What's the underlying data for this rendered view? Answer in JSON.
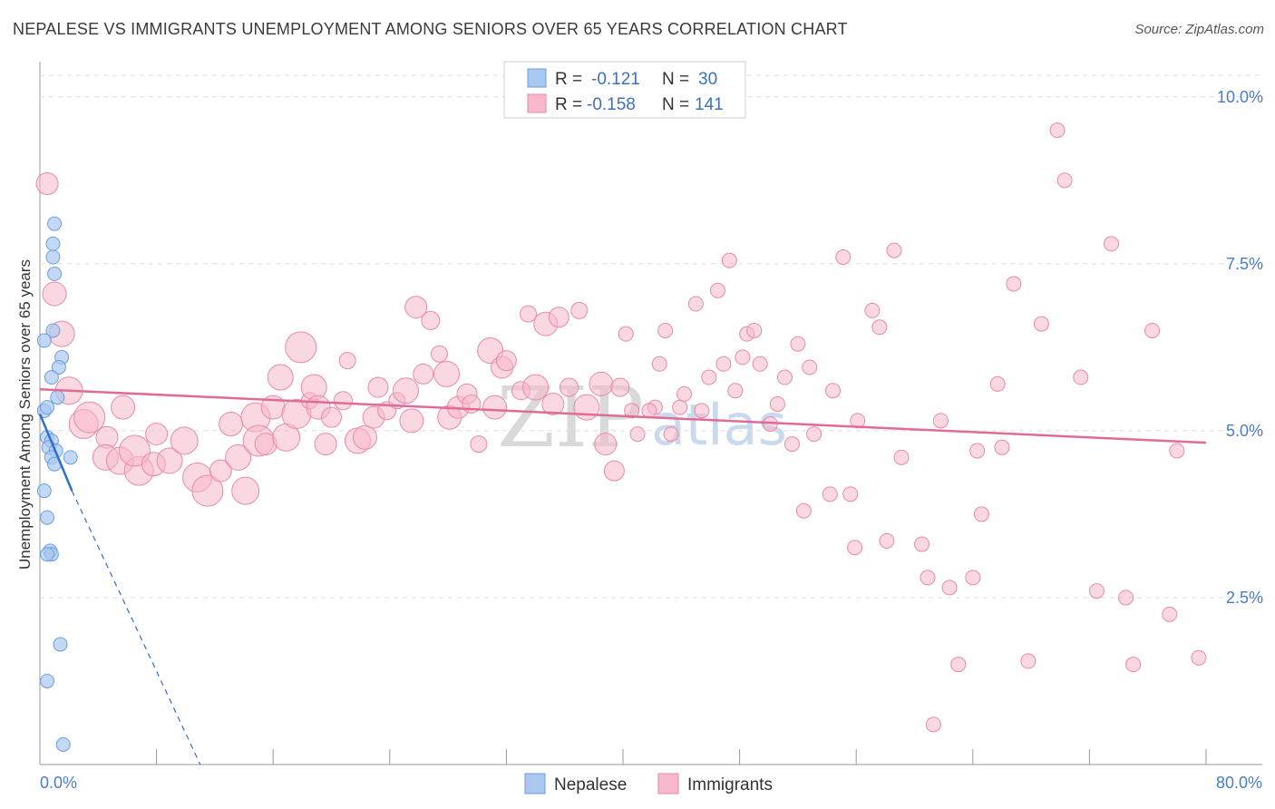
{
  "title": "NEPALESE VS IMMIGRANTS UNEMPLOYMENT AMONG SENIORS OVER 65 YEARS CORRELATION CHART",
  "source": "Source: ZipAtlas.com",
  "watermark": {
    "zip": "ZIP",
    "atlas": "atlas"
  },
  "colors": {
    "nepalese_fill": "#a9c8f0",
    "nepalese_stroke": "#6b9ee0",
    "nepalese_line": "#2f6fcc",
    "immigrants_fill": "#f6b8ca",
    "immigrants_stroke": "#e88aa6",
    "immigrants_line": "#e06b97",
    "grid": "#dddddd",
    "tick_text": "#4a7cc7"
  },
  "legend": {
    "rows": [
      {
        "r_label": "R =",
        "r_value": "-0.121",
        "n_label": "N =",
        "n_value": "30"
      },
      {
        "r_label": "R =",
        "r_value": "-0.158",
        "n_label": "N =",
        "n_value": "141"
      }
    ]
  },
  "chart_data": {
    "type": "scatter",
    "xlabel": "",
    "ylabel": "Unemployment Among Seniors over 65 years",
    "xlim": [
      0,
      80
    ],
    "ylim": [
      0,
      10.5
    ],
    "x_tick_labels": [
      "0.0%",
      "80.0%"
    ],
    "y_ticks": [
      2.5,
      5.0,
      7.5,
      10.0
    ],
    "y_tick_labels": [
      "2.5%",
      "5.0%",
      "7.5%",
      "10.0%"
    ],
    "legend_entries": [
      "Nepalese",
      "Immigrants"
    ],
    "series": [
      {
        "name": "Nepalese",
        "R": -0.121,
        "N": 30,
        "trend": {
          "x": [
            0.0,
            2.2
          ],
          "y": [
            5.25,
            4.1
          ],
          "dashed_extension_to": [
            11.0,
            0.0
          ]
        },
        "points": [
          [
            1.0,
            8.1
          ],
          [
            0.9,
            7.8
          ],
          [
            0.9,
            7.6
          ],
          [
            1.0,
            7.35
          ],
          [
            0.9,
            6.5
          ],
          [
            0.3,
            6.35
          ],
          [
            1.5,
            6.1
          ],
          [
            1.3,
            5.95
          ],
          [
            0.8,
            5.8
          ],
          [
            1.2,
            5.5
          ],
          [
            0.3,
            5.3
          ],
          [
            0.5,
            5.35
          ],
          [
            0.5,
            4.9
          ],
          [
            0.8,
            4.85
          ],
          [
            0.6,
            4.75
          ],
          [
            1.1,
            4.7
          ],
          [
            0.8,
            4.6
          ],
          [
            2.1,
            4.6
          ],
          [
            1.0,
            4.5
          ],
          [
            0.3,
            4.1
          ],
          [
            0.5,
            3.7
          ],
          [
            0.7,
            3.2
          ],
          [
            0.8,
            3.15
          ],
          [
            0.5,
            3.15
          ],
          [
            1.4,
            1.8
          ],
          [
            0.5,
            1.25
          ],
          [
            1.6,
            0.3
          ]
        ]
      },
      {
        "name": "Immigrants",
        "R": -0.158,
        "N": 141,
        "trend": {
          "x": [
            0.0,
            80.0
          ],
          "y": [
            5.62,
            4.82
          ]
        },
        "points": [
          [
            0.5,
            8.7
          ],
          [
            1.0,
            7.05
          ],
          [
            1.5,
            6.45
          ],
          [
            2.0,
            5.6
          ],
          [
            3.0,
            5.1
          ],
          [
            3.4,
            5.2
          ],
          [
            4.6,
            4.9
          ],
          [
            5.7,
            5.35
          ],
          [
            4.5,
            4.6
          ],
          [
            5.5,
            4.55
          ],
          [
            6.8,
            4.4
          ],
          [
            6.5,
            4.7
          ],
          [
            8.0,
            4.95
          ],
          [
            7.8,
            4.5
          ],
          [
            8.9,
            4.55
          ],
          [
            9.9,
            4.85
          ],
          [
            10.8,
            4.3
          ],
          [
            11.5,
            4.1
          ],
          [
            12.4,
            4.4
          ],
          [
            13.1,
            5.1
          ],
          [
            13.6,
            4.6
          ],
          [
            14.1,
            4.1
          ],
          [
            14.8,
            5.2
          ],
          [
            15.0,
            4.85
          ],
          [
            15.5,
            4.8
          ],
          [
            16.0,
            5.35
          ],
          [
            16.5,
            5.8
          ],
          [
            16.9,
            4.9
          ],
          [
            17.6,
            5.25
          ],
          [
            17.9,
            6.25
          ],
          [
            18.5,
            5.45
          ],
          [
            18.8,
            5.65
          ],
          [
            19.1,
            5.35
          ],
          [
            19.6,
            4.8
          ],
          [
            20.0,
            5.2
          ],
          [
            20.8,
            5.45
          ],
          [
            21.1,
            6.05
          ],
          [
            21.8,
            4.85
          ],
          [
            22.3,
            4.9
          ],
          [
            22.9,
            5.2
          ],
          [
            23.2,
            5.65
          ],
          [
            23.8,
            5.3
          ],
          [
            24.5,
            5.45
          ],
          [
            25.1,
            5.6
          ],
          [
            25.5,
            5.15
          ],
          [
            25.8,
            6.85
          ],
          [
            26.3,
            5.85
          ],
          [
            26.8,
            6.65
          ],
          [
            27.4,
            6.15
          ],
          [
            27.9,
            5.85
          ],
          [
            28.1,
            5.2
          ],
          [
            28.7,
            5.35
          ],
          [
            29.3,
            5.55
          ],
          [
            29.6,
            5.4
          ],
          [
            30.1,
            4.8
          ],
          [
            30.9,
            6.2
          ],
          [
            31.2,
            5.35
          ],
          [
            31.7,
            5.95
          ],
          [
            32.0,
            6.05
          ],
          [
            33.0,
            5.6
          ],
          [
            33.5,
            6.75
          ],
          [
            34.0,
            5.65
          ],
          [
            34.7,
            6.6
          ],
          [
            35.2,
            5.4
          ],
          [
            35.6,
            6.7
          ],
          [
            36.3,
            5.65
          ],
          [
            37.0,
            6.8
          ],
          [
            37.5,
            5.35
          ],
          [
            38.5,
            5.7
          ],
          [
            38.8,
            4.8
          ],
          [
            39.4,
            4.4
          ],
          [
            39.8,
            5.65
          ],
          [
            40.2,
            6.45
          ],
          [
            40.6,
            5.3
          ],
          [
            41.0,
            4.95
          ],
          [
            42.2,
            5.35
          ],
          [
            42.5,
            6.0
          ],
          [
            42.9,
            6.5
          ],
          [
            43.3,
            4.95
          ],
          [
            43.9,
            5.35
          ],
          [
            44.2,
            5.55
          ],
          [
            45.0,
            6.9
          ],
          [
            45.4,
            5.3
          ],
          [
            45.9,
            5.8
          ],
          [
            46.5,
            7.1
          ],
          [
            46.9,
            6.0
          ],
          [
            47.3,
            7.55
          ],
          [
            47.7,
            5.6
          ],
          [
            48.2,
            6.1
          ],
          [
            48.5,
            6.45
          ],
          [
            49.0,
            6.5
          ],
          [
            49.4,
            6.0
          ],
          [
            50.1,
            5.1
          ],
          [
            50.6,
            5.4
          ],
          [
            51.1,
            5.8
          ],
          [
            51.6,
            4.8
          ],
          [
            52.0,
            6.3
          ],
          [
            52.4,
            3.8
          ],
          [
            53.1,
            4.95
          ],
          [
            54.2,
            4.05
          ],
          [
            54.4,
            5.6
          ],
          [
            55.1,
            7.6
          ],
          [
            55.6,
            4.05
          ],
          [
            55.9,
            3.25
          ],
          [
            56.1,
            5.15
          ],
          [
            57.1,
            6.8
          ],
          [
            57.6,
            6.55
          ],
          [
            58.1,
            3.35
          ],
          [
            58.6,
            7.7
          ],
          [
            59.1,
            4.6
          ],
          [
            60.5,
            3.3
          ],
          [
            60.9,
            2.8
          ],
          [
            61.3,
            0.6
          ],
          [
            62.4,
            2.65
          ],
          [
            63.0,
            1.5
          ],
          [
            64.0,
            2.8
          ],
          [
            64.3,
            4.7
          ],
          [
            64.6,
            3.75
          ],
          [
            65.7,
            5.7
          ],
          [
            66.0,
            4.75
          ],
          [
            66.8,
            7.2
          ],
          [
            67.8,
            1.55
          ],
          [
            68.7,
            6.6
          ],
          [
            69.8,
            9.5
          ],
          [
            70.3,
            8.75
          ],
          [
            71.4,
            5.8
          ],
          [
            72.5,
            2.6
          ],
          [
            73.5,
            7.8
          ],
          [
            74.5,
            2.5
          ],
          [
            75.0,
            1.5
          ],
          [
            76.3,
            6.5
          ],
          [
            77.5,
            2.25
          ],
          [
            78.0,
            4.7
          ],
          [
            79.5,
            1.6
          ],
          [
            61.8,
            5.15
          ],
          [
            52.8,
            5.95
          ],
          [
            41.8,
            5.3
          ]
        ]
      }
    ]
  }
}
